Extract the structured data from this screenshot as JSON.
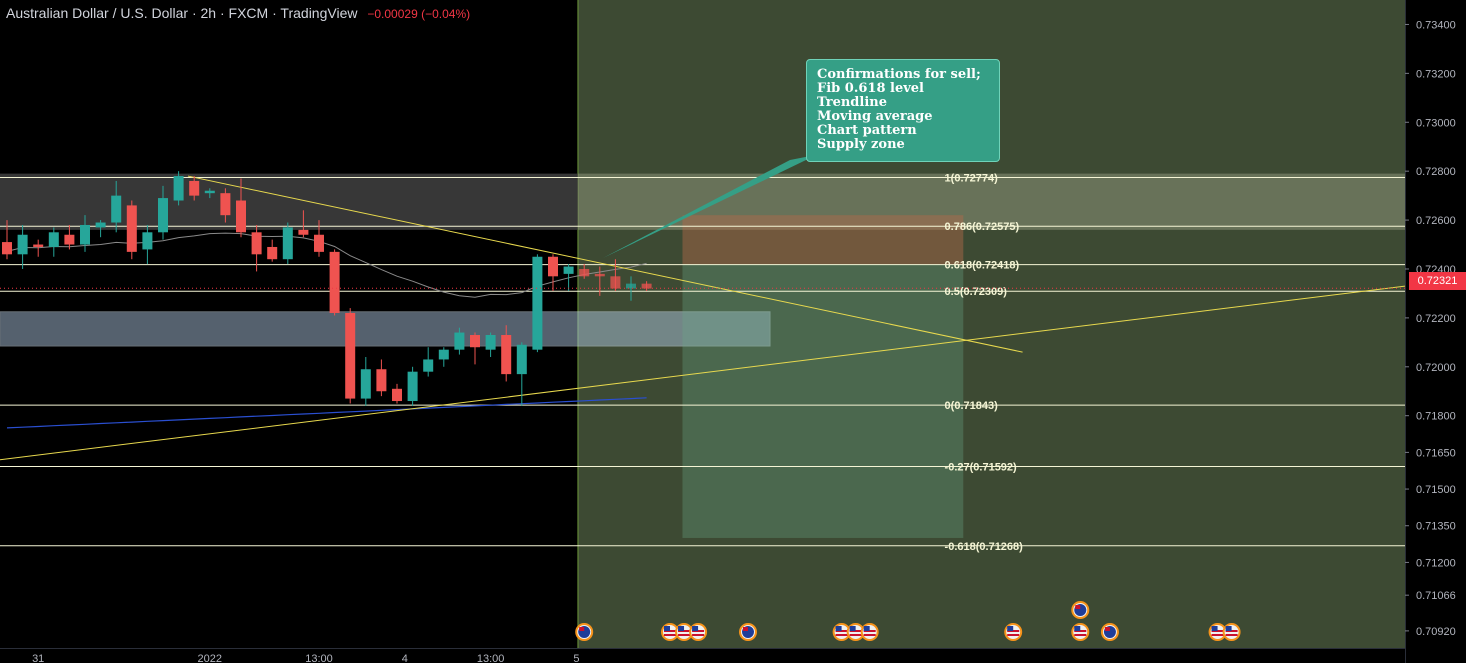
{
  "header": {
    "symbol": "Australian Dollar / U.S. Dollar",
    "interval": "2h",
    "exchange": "FXCM",
    "source": "TradingView",
    "change": "−0.00029 (−0.04%)"
  },
  "annotation": {
    "lines": [
      "Confirmations for sell;",
      "Fib 0.618 level",
      "Trendline",
      "Moving average",
      "Chart pattern",
      "Supply zone"
    ]
  },
  "current_price": {
    "value": 0.72321,
    "label": "0.72321"
  },
  "colors": {
    "up_candle": "#26a69a",
    "down_candle": "#ef5350",
    "fib_line": "#f5f5d5",
    "trendline": "#e8d94e",
    "profit_zone": "#3d4a33",
    "note_bg": "#359f86",
    "price_tag": "#f23645"
  },
  "chart_data": {
    "type": "candlestick",
    "y_axis": {
      "range": [
        0.7085,
        0.735
      ],
      "ticks": [
        {
          "value": 0.734,
          "label": "0.73400"
        },
        {
          "value": 0.732,
          "label": "0.73200"
        },
        {
          "value": 0.73,
          "label": "0.73000"
        },
        {
          "value": 0.728,
          "label": "0.72800"
        },
        {
          "value": 0.726,
          "label": "0.72600"
        },
        {
          "value": 0.724,
          "label": "0.72400"
        },
        {
          "value": 0.722,
          "label": "0.72200"
        },
        {
          "value": 0.72,
          "label": "0.72000"
        },
        {
          "value": 0.718,
          "label": "0.71800"
        },
        {
          "value": 0.7165,
          "label": "0.71650"
        },
        {
          "value": 0.715,
          "label": "0.71500"
        },
        {
          "value": 0.7135,
          "label": "0.71350"
        },
        {
          "value": 0.712,
          "label": "0.71200"
        },
        {
          "value": 0.71066,
          "label": "0.71066"
        },
        {
          "value": 0.7092,
          "label": "0.70920"
        }
      ]
    },
    "x_axis": {
      "ticks": [
        {
          "index": 2,
          "label": "31"
        },
        {
          "index": 13,
          "label": "2022"
        },
        {
          "index": 20,
          "label": "13:00"
        },
        {
          "index": 25.5,
          "label": "4"
        },
        {
          "index": 31,
          "label": "13:00"
        },
        {
          "index": 36.5,
          "label": "5"
        }
      ]
    },
    "candles": [
      {
        "i": 0,
        "o": 0.7251,
        "h": 0.726,
        "l": 0.7244,
        "c": 0.7246
      },
      {
        "i": 1,
        "o": 0.7246,
        "h": 0.7258,
        "l": 0.724,
        "c": 0.7254
      },
      {
        "i": 2,
        "o": 0.725,
        "h": 0.7252,
        "l": 0.7245,
        "c": 0.7249
      },
      {
        "i": 3,
        "o": 0.7249,
        "h": 0.7257,
        "l": 0.7245,
        "c": 0.7255
      },
      {
        "i": 4,
        "o": 0.7254,
        "h": 0.7258,
        "l": 0.7248,
        "c": 0.725
      },
      {
        "i": 5,
        "o": 0.725,
        "h": 0.7262,
        "l": 0.7247,
        "c": 0.7258
      },
      {
        "i": 6,
        "o": 0.7257,
        "h": 0.726,
        "l": 0.7253,
        "c": 0.7259
      },
      {
        "i": 7,
        "o": 0.7259,
        "h": 0.7276,
        "l": 0.7255,
        "c": 0.727
      },
      {
        "i": 8,
        "o": 0.7266,
        "h": 0.7268,
        "l": 0.7244,
        "c": 0.7247
      },
      {
        "i": 9,
        "o": 0.7248,
        "h": 0.7258,
        "l": 0.7242,
        "c": 0.7255
      },
      {
        "i": 10,
        "o": 0.7255,
        "h": 0.7274,
        "l": 0.7252,
        "c": 0.7269
      },
      {
        "i": 11,
        "o": 0.7268,
        "h": 0.728,
        "l": 0.7266,
        "c": 0.7278
      },
      {
        "i": 12,
        "o": 0.7276,
        "h": 0.7278,
        "l": 0.7268,
        "c": 0.727
      },
      {
        "i": 13,
        "o": 0.7271,
        "h": 0.7273,
        "l": 0.7269,
        "c": 0.7272
      },
      {
        "i": 14,
        "o": 0.7271,
        "h": 0.7273,
        "l": 0.7259,
        "c": 0.7262
      },
      {
        "i": 15,
        "o": 0.7268,
        "h": 0.7277,
        "l": 0.7253,
        "c": 0.7255
      },
      {
        "i": 16,
        "o": 0.7255,
        "h": 0.7258,
        "l": 0.7239,
        "c": 0.7246
      },
      {
        "i": 17,
        "o": 0.7249,
        "h": 0.7252,
        "l": 0.7243,
        "c": 0.7244
      },
      {
        "i": 18,
        "o": 0.7244,
        "h": 0.7259,
        "l": 0.7242,
        "c": 0.7257
      },
      {
        "i": 19,
        "o": 0.7256,
        "h": 0.7264,
        "l": 0.7253,
        "c": 0.7254
      },
      {
        "i": 20,
        "o": 0.7254,
        "h": 0.726,
        "l": 0.7245,
        "c": 0.7247
      },
      {
        "i": 21,
        "o": 0.7247,
        "h": 0.7248,
        "l": 0.7221,
        "c": 0.7222
      },
      {
        "i": 22,
        "o": 0.7222,
        "h": 0.7224,
        "l": 0.7185,
        "c": 0.7187
      },
      {
        "i": 23,
        "o": 0.7187,
        "h": 0.7204,
        "l": 0.7184,
        "c": 0.7199
      },
      {
        "i": 24,
        "o": 0.7199,
        "h": 0.7203,
        "l": 0.7188,
        "c": 0.719
      },
      {
        "i": 25,
        "o": 0.7191,
        "h": 0.7193,
        "l": 0.7185,
        "c": 0.7186
      },
      {
        "i": 26,
        "o": 0.7186,
        "h": 0.72,
        "l": 0.7184,
        "c": 0.7198
      },
      {
        "i": 27,
        "o": 0.7198,
        "h": 0.7208,
        "l": 0.7196,
        "c": 0.7203
      },
      {
        "i": 28,
        "o": 0.7203,
        "h": 0.7208,
        "l": 0.72,
        "c": 0.7207
      },
      {
        "i": 29,
        "o": 0.7207,
        "h": 0.7216,
        "l": 0.7205,
        "c": 0.7214
      },
      {
        "i": 30,
        "o": 0.7213,
        "h": 0.7214,
        "l": 0.7201,
        "c": 0.7208
      },
      {
        "i": 31,
        "o": 0.7207,
        "h": 0.7214,
        "l": 0.7204,
        "c": 0.7213
      },
      {
        "i": 32,
        "o": 0.7213,
        "h": 0.7217,
        "l": 0.7194,
        "c": 0.7197
      },
      {
        "i": 33,
        "o": 0.7197,
        "h": 0.721,
        "l": 0.7184,
        "c": 0.7209
      },
      {
        "i": 34,
        "o": 0.7207,
        "h": 0.7246,
        "l": 0.7206,
        "c": 0.7245
      },
      {
        "i": 35,
        "o": 0.7245,
        "h": 0.7246,
        "l": 0.7231,
        "c": 0.7237
      },
      {
        "i": 36,
        "o": 0.7238,
        "h": 0.7242,
        "l": 0.7231,
        "c": 0.7241
      },
      {
        "i": 37,
        "o": 0.724,
        "h": 0.7242,
        "l": 0.7236,
        "c": 0.7237
      },
      {
        "i": 38,
        "o": 0.7238,
        "h": 0.7241,
        "l": 0.7229,
        "c": 0.7237
      },
      {
        "i": 39,
        "o": 0.7237,
        "h": 0.7244,
        "l": 0.7231,
        "c": 0.7232
      },
      {
        "i": 40,
        "o": 0.7232,
        "h": 0.7237,
        "l": 0.7227,
        "c": 0.7234
      },
      {
        "i": 41,
        "o": 0.7234,
        "h": 0.7235,
        "l": 0.7231,
        "c": 0.7232
      }
    ],
    "fib_levels": [
      {
        "value": 0.72774,
        "label": "1(0.72774)"
      },
      {
        "value": 0.72575,
        "label": "0.786(0.72575)"
      },
      {
        "value": 0.72418,
        "label": "0.618(0.72418)"
      },
      {
        "value": 0.72309,
        "label": "0.5(0.72309)"
      },
      {
        "value": 0.71843,
        "label": "0(0.71843)"
      },
      {
        "value": 0.71592,
        "label": "-0.27(0.71592)"
      },
      {
        "value": 0.71268,
        "label": "-0.618(0.71268)"
      }
    ],
    "zones": [
      {
        "kind": "supply",
        "top": 0.7279,
        "bottom": 0.7256
      },
      {
        "kind": "demand",
        "top": 0.72225,
        "bottom": 0.72085
      }
    ],
    "short_position": {
      "entry": 0.7242,
      "stop": 0.7262,
      "target": 0.713
    },
    "event_markers": [
      {
        "index": 37,
        "flag": "AU"
      },
      {
        "index": 42.5,
        "flag": "US"
      },
      {
        "index": 43.4,
        "flag": "US"
      },
      {
        "index": 44.3,
        "flag": "US"
      },
      {
        "index": 47.5,
        "flag": "AU"
      },
      {
        "index": 53.5,
        "flag": "US"
      },
      {
        "index": 54.4,
        "flag": "US"
      },
      {
        "index": 55.3,
        "flag": "US"
      },
      {
        "index": 64.5,
        "flag": "US"
      },
      {
        "index": 68.8,
        "flag": "AU",
        "row": 2
      },
      {
        "index": 68.8,
        "flag": "US"
      },
      {
        "index": 70.7,
        "flag": "AU"
      },
      {
        "index": 77.6,
        "flag": "US"
      },
      {
        "index": 78.5,
        "flag": "US"
      }
    ]
  }
}
